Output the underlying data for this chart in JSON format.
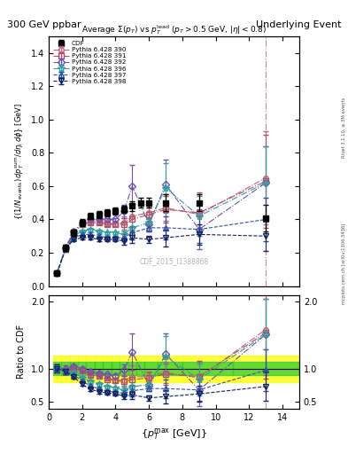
{
  "title_left": "300 GeV ppbar",
  "title_right": "Underlying Event",
  "watermark": "CDF_2015_I1388868",
  "right_label": "mcplots.cern.ch [arXiv:1306.3436]",
  "right_label2": "Rivet 3.1.10, ≥ 3M events",
  "ylabel_ratio": "Ratio to CDF",
  "ylim_main": [
    0,
    1.5
  ],
  "ylim_ratio": [
    0.4,
    2.1
  ],
  "xlim": [
    0,
    15
  ],
  "ref_line": 13.0,
  "cdf_x": [
    0.5,
    1.0,
    1.5,
    2.0,
    2.5,
    3.0,
    3.5,
    4.0,
    4.5,
    5.0,
    5.5,
    6.0,
    7.0,
    9.0,
    13.0
  ],
  "cdf_y": [
    0.08,
    0.23,
    0.32,
    0.38,
    0.42,
    0.43,
    0.44,
    0.45,
    0.46,
    0.48,
    0.5,
    0.5,
    0.5,
    0.5,
    0.41
  ],
  "cdf_yerr": [
    0.01,
    0.02,
    0.02,
    0.02,
    0.02,
    0.02,
    0.02,
    0.02,
    0.02,
    0.03,
    0.03,
    0.03,
    0.05,
    0.05,
    0.08
  ],
  "bin_edges": [
    0.25,
    0.75,
    1.25,
    1.75,
    2.25,
    2.75,
    3.25,
    3.75,
    4.25,
    4.75,
    5.25,
    5.75,
    6.5,
    8.0,
    11.0,
    15.0
  ],
  "series": [
    {
      "label": "Pythia 6.428 390",
      "color": "#c06080",
      "marker": "o",
      "markersize": 4,
      "linestyle": "-.",
      "x": [
        0.5,
        1.0,
        1.5,
        2.0,
        2.5,
        3.0,
        3.5,
        4.0,
        4.5,
        5.0,
        6.0,
        7.0,
        9.0,
        13.0
      ],
      "y": [
        0.08,
        0.22,
        0.32,
        0.37,
        0.39,
        0.39,
        0.38,
        0.37,
        0.38,
        0.42,
        0.44,
        0.47,
        0.43,
        0.65
      ],
      "yerr": [
        0.005,
        0.01,
        0.01,
        0.01,
        0.01,
        0.01,
        0.01,
        0.01,
        0.04,
        0.08,
        0.04,
        0.08,
        0.12,
        0.28
      ]
    },
    {
      "label": "Pythia 6.428 391",
      "color": "#b05060",
      "marker": "s",
      "markersize": 4,
      "linestyle": "-.",
      "x": [
        0.5,
        1.0,
        1.5,
        2.0,
        2.5,
        3.0,
        3.5,
        4.0,
        4.5,
        5.0,
        6.0,
        7.0,
        9.0,
        13.0
      ],
      "y": [
        0.08,
        0.22,
        0.32,
        0.37,
        0.38,
        0.38,
        0.37,
        0.37,
        0.37,
        0.4,
        0.43,
        0.46,
        0.44,
        0.63
      ],
      "yerr": [
        0.005,
        0.01,
        0.01,
        0.01,
        0.01,
        0.01,
        0.01,
        0.01,
        0.04,
        0.07,
        0.04,
        0.08,
        0.12,
        0.28
      ]
    },
    {
      "label": "Pythia 6.428 392",
      "color": "#7050b0",
      "marker": "D",
      "markersize": 4,
      "linestyle": "-.",
      "x": [
        0.5,
        1.0,
        1.5,
        2.0,
        2.5,
        3.0,
        3.5,
        4.0,
        4.5,
        5.0,
        6.0,
        7.0,
        9.0,
        13.0
      ],
      "y": [
        0.08,
        0.23,
        0.33,
        0.38,
        0.4,
        0.4,
        0.4,
        0.4,
        0.45,
        0.6,
        0.37,
        0.61,
        0.34,
        0.62
      ],
      "yerr": [
        0.005,
        0.01,
        0.01,
        0.01,
        0.01,
        0.01,
        0.01,
        0.01,
        0.04,
        0.13,
        0.04,
        0.15,
        0.12,
        0.22
      ]
    },
    {
      "label": "Pythia 6.428 396",
      "color": "#30a0a0",
      "marker": "*",
      "markersize": 6,
      "linestyle": "-.",
      "x": [
        0.5,
        1.0,
        1.5,
        2.0,
        2.5,
        3.0,
        3.5,
        4.0,
        4.5,
        5.0,
        6.0,
        7.0,
        9.0,
        13.0
      ],
      "y": [
        0.08,
        0.22,
        0.3,
        0.33,
        0.34,
        0.33,
        0.32,
        0.32,
        0.31,
        0.35,
        0.38,
        0.59,
        0.42,
        0.62
      ],
      "yerr": [
        0.005,
        0.01,
        0.01,
        0.01,
        0.01,
        0.01,
        0.01,
        0.01,
        0.03,
        0.07,
        0.03,
        0.15,
        0.12,
        0.22
      ]
    },
    {
      "label": "Pythia 6.428 397",
      "color": "#3050a0",
      "marker": "^",
      "markersize": 5,
      "linestyle": "--",
      "x": [
        0.5,
        1.0,
        1.5,
        2.0,
        2.5,
        3.0,
        3.5,
        4.0,
        4.5,
        5.0,
        6.0,
        7.0,
        9.0,
        13.0
      ],
      "y": [
        0.08,
        0.22,
        0.29,
        0.31,
        0.31,
        0.3,
        0.29,
        0.29,
        0.29,
        0.32,
        0.35,
        0.35,
        0.34,
        0.4
      ],
      "yerr": [
        0.005,
        0.01,
        0.01,
        0.01,
        0.01,
        0.01,
        0.01,
        0.01,
        0.02,
        0.04,
        0.02,
        0.07,
        0.08,
        0.13
      ]
    },
    {
      "label": "Pythia 6.428 398",
      "color": "#102060",
      "marker": "v",
      "markersize": 5,
      "linestyle": "--",
      "x": [
        0.5,
        1.0,
        1.5,
        2.0,
        2.5,
        3.0,
        3.5,
        4.0,
        4.5,
        5.0,
        6.0,
        7.0,
        9.0,
        13.0
      ],
      "y": [
        0.08,
        0.22,
        0.28,
        0.29,
        0.29,
        0.28,
        0.28,
        0.28,
        0.27,
        0.29,
        0.28,
        0.29,
        0.31,
        0.3
      ],
      "yerr": [
        0.005,
        0.01,
        0.01,
        0.01,
        0.01,
        0.01,
        0.01,
        0.01,
        0.02,
        0.03,
        0.02,
        0.05,
        0.06,
        0.09
      ]
    }
  ]
}
